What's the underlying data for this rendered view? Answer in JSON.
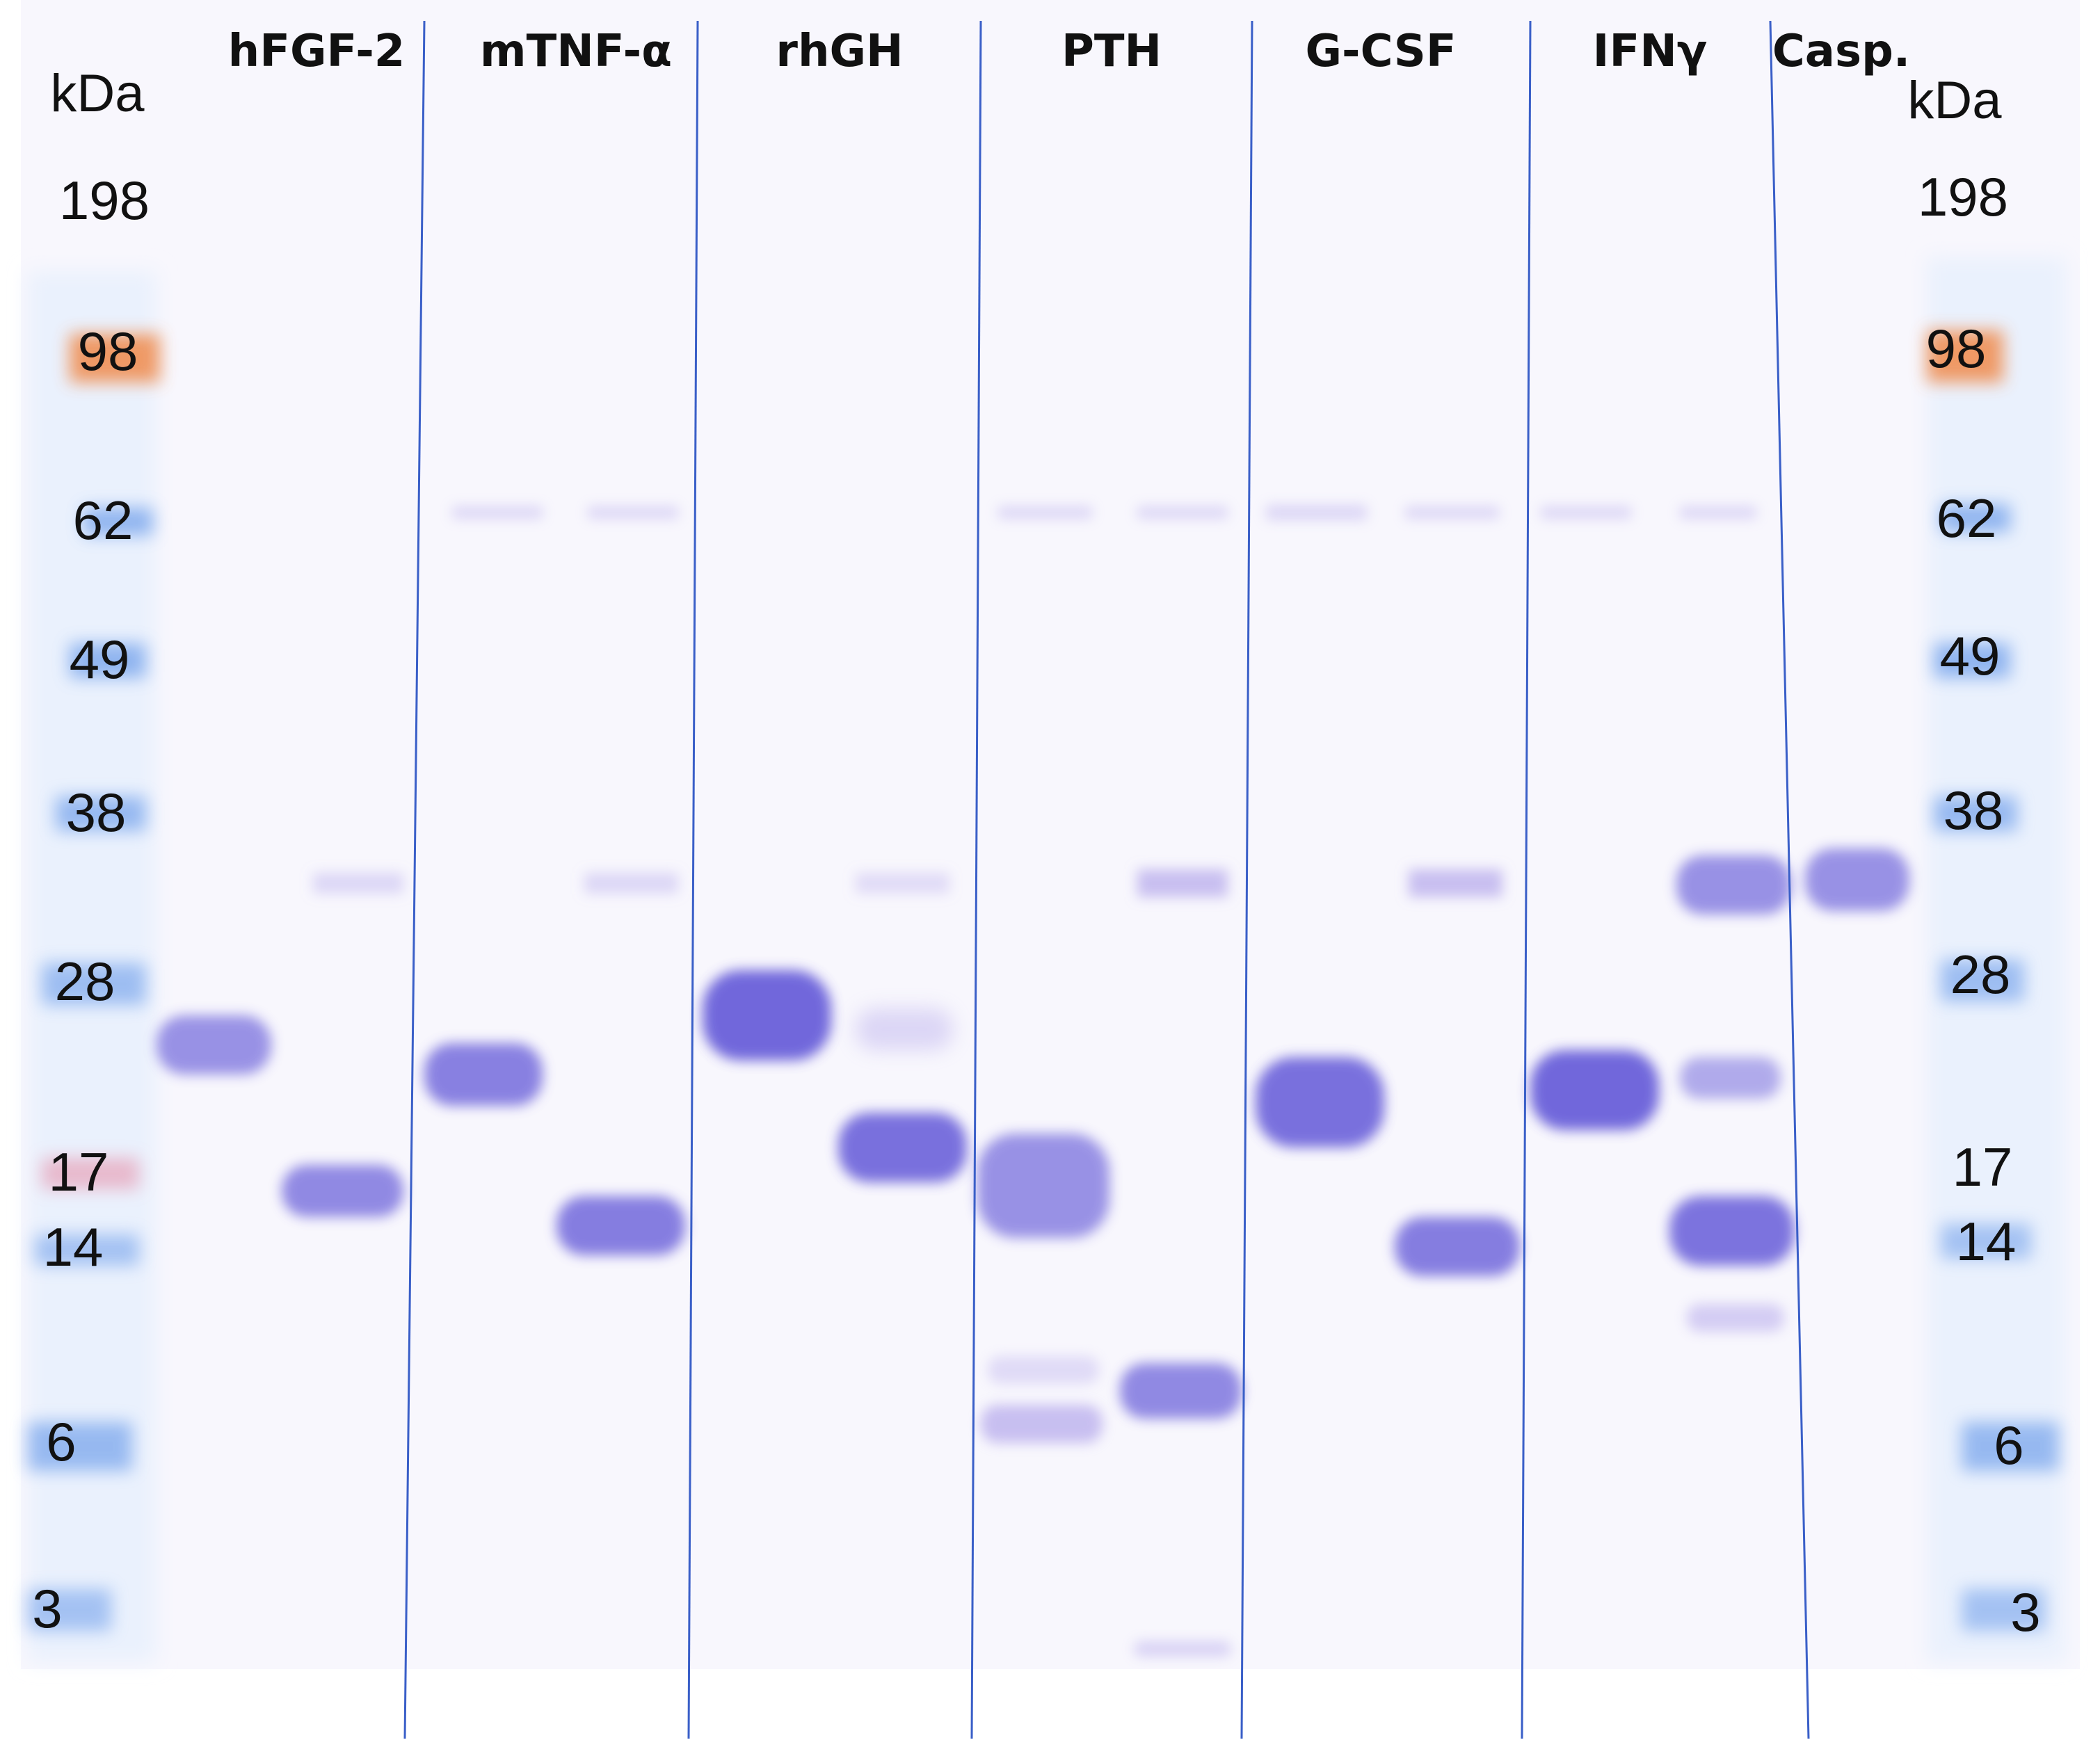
{
  "units": {
    "left": "kDa",
    "right": "kDa"
  },
  "lanes": [
    {
      "label": "hFGF-2"
    },
    {
      "label": "mTNF-α"
    },
    {
      "label": "rhGH"
    },
    {
      "label": "PTH"
    },
    {
      "label": "G-CSF"
    },
    {
      "label": "IFNγ"
    },
    {
      "label": "Casp."
    }
  ],
  "markers": {
    "left": [
      "198",
      "98",
      "62",
      "49",
      "38",
      "28",
      "17",
      "14",
      "6",
      "3"
    ],
    "right": [
      "198",
      "98",
      "62",
      "49",
      "38",
      "28",
      "17",
      "14",
      "6",
      "3"
    ]
  },
  "colors": {
    "band": "#5a4fd6",
    "band_light": "#a89ae8",
    "ladder_blue": "#6a9bea",
    "ladder_orange": "#f08a4b",
    "ladder_pink": "#e7a1b8",
    "separator": "#3a5fc8"
  }
}
